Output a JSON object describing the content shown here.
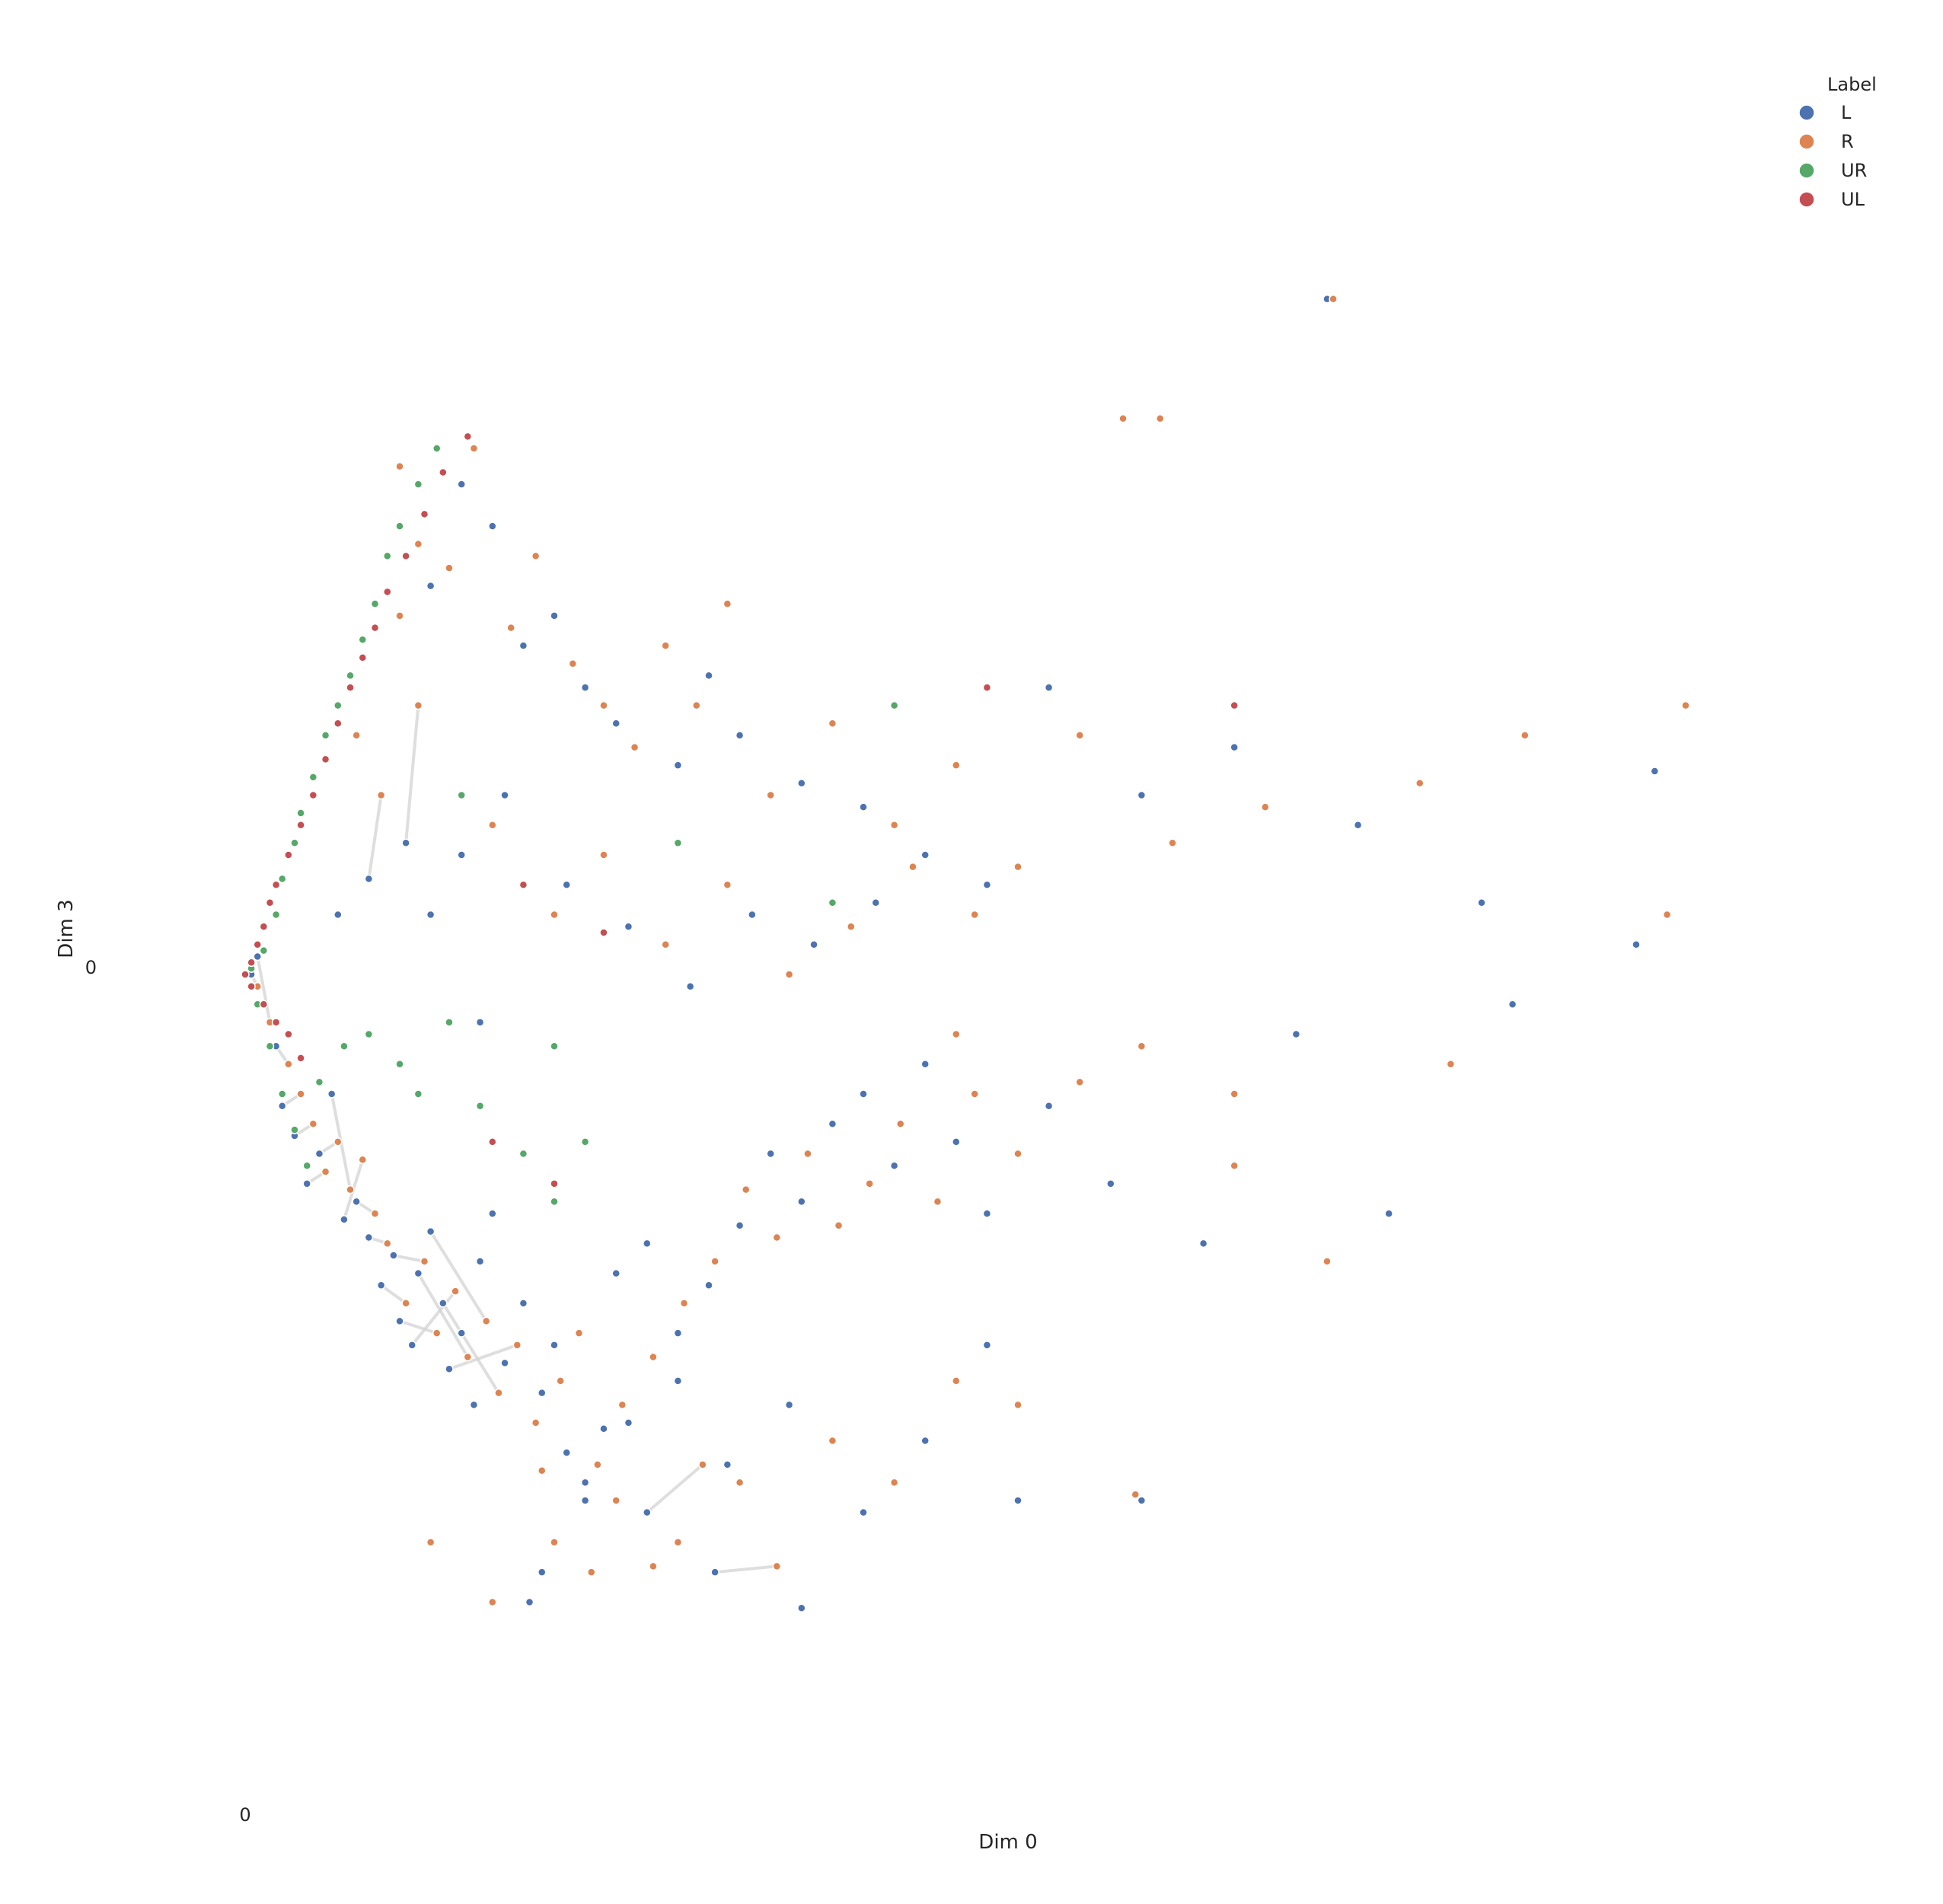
{
  "chart_data": {
    "type": "scatter",
    "title": "",
    "xlabel": "Dim 0",
    "ylabel": "Dim 3",
    "x_tick_labels": [
      "0"
    ],
    "y_tick_labels": [
      "0"
    ],
    "xlim": [
      0,
      2.5
    ],
    "ylim": [
      -1.35,
      1.35
    ],
    "grid": false,
    "legend": {
      "title": "Label",
      "position": "top-right"
    },
    "point_style": {
      "edge_color": "#ffffff",
      "connector_color": "#d3d3d3"
    },
    "series": [
      {
        "name": "L",
        "color": "#4c72b0",
        "points": [
          [
            0.01,
            0.0
          ],
          [
            0.02,
            0.03
          ],
          [
            0.05,
            -0.12
          ],
          [
            0.06,
            -0.22
          ],
          [
            0.08,
            -0.27
          ],
          [
            0.1,
            -0.35
          ],
          [
            0.12,
            -0.3
          ],
          [
            0.14,
            -0.2
          ],
          [
            0.16,
            -0.41
          ],
          [
            0.18,
            -0.38
          ],
          [
            0.2,
            -0.44
          ],
          [
            0.22,
            -0.52
          ],
          [
            0.24,
            -0.47
          ],
          [
            0.25,
            -0.58
          ],
          [
            0.27,
            -0.62
          ],
          [
            0.28,
            -0.5
          ],
          [
            0.3,
            -0.43
          ],
          [
            0.32,
            -0.55
          ],
          [
            0.33,
            -0.66
          ],
          [
            0.35,
            -0.6
          ],
          [
            0.37,
            -0.72
          ],
          [
            0.38,
            -0.48
          ],
          [
            0.4,
            -0.4
          ],
          [
            0.42,
            -0.65
          ],
          [
            0.45,
            -0.55
          ],
          [
            0.48,
            -0.7
          ],
          [
            0.5,
            -0.62
          ],
          [
            0.52,
            -0.8
          ],
          [
            0.55,
            -0.88
          ],
          [
            0.58,
            -0.76
          ],
          [
            0.6,
            -0.5
          ],
          [
            0.65,
            -0.45
          ],
          [
            0.7,
            -0.6
          ],
          [
            0.75,
            -0.52
          ],
          [
            0.8,
            -0.42
          ],
          [
            0.85,
            -0.3
          ],
          [
            0.9,
            -0.38
          ],
          [
            0.95,
            -0.25
          ],
          [
            1.0,
            -0.2
          ],
          [
            1.05,
            -0.32
          ],
          [
            1.1,
            -0.15
          ],
          [
            1.15,
            -0.28
          ],
          [
            1.2,
            -0.4
          ],
          [
            1.3,
            -0.22
          ],
          [
            1.4,
            -0.35
          ],
          [
            1.55,
            -0.45
          ],
          [
            1.7,
            -0.1
          ],
          [
            1.85,
            -0.4
          ],
          [
            2.05,
            -0.05
          ],
          [
            0.3,
            0.65
          ],
          [
            0.35,
            0.82
          ],
          [
            0.4,
            0.75
          ],
          [
            0.45,
            0.55
          ],
          [
            0.5,
            0.6
          ],
          [
            0.55,
            0.48
          ],
          [
            0.6,
            0.42
          ],
          [
            0.7,
            0.35
          ],
          [
            0.75,
            0.5
          ],
          [
            0.8,
            0.4
          ],
          [
            0.9,
            0.32
          ],
          [
            1.0,
            0.28
          ],
          [
            1.1,
            0.2
          ],
          [
            1.2,
            0.15
          ],
          [
            1.3,
            0.48
          ],
          [
            1.45,
            0.3
          ],
          [
            1.6,
            0.38
          ],
          [
            1.8,
            0.25
          ],
          [
            2.0,
            0.12
          ],
          [
            2.25,
            0.05
          ],
          [
            2.28,
            0.34
          ],
          [
            1.75,
            1.13
          ],
          [
            0.42,
            0.3
          ],
          [
            0.52,
            0.15
          ],
          [
            0.62,
            0.08
          ],
          [
            0.72,
            -0.02
          ],
          [
            0.82,
            0.1
          ],
          [
            0.92,
            0.05
          ],
          [
            1.02,
            0.12
          ],
          [
            0.3,
            0.1
          ],
          [
            0.35,
            0.2
          ],
          [
            0.38,
            -0.08
          ],
          [
            0.48,
            -1.0
          ],
          [
            0.55,
            -0.85
          ],
          [
            0.62,
            -0.75
          ],
          [
            0.7,
            -0.68
          ],
          [
            0.78,
            -0.82
          ],
          [
            0.88,
            -0.72
          ],
          [
            1.0,
            -0.9
          ],
          [
            1.1,
            -0.78
          ],
          [
            1.2,
            -0.62
          ],
          [
            0.46,
            -1.05
          ],
          [
            0.65,
            -0.9
          ],
          [
            0.76,
            -1.0
          ],
          [
            1.25,
            -0.88
          ],
          [
            0.9,
            -1.06
          ],
          [
            1.45,
            -0.88
          ],
          [
            0.15,
            0.1
          ],
          [
            0.2,
            0.16
          ],
          [
            0.26,
            0.22
          ]
        ]
      },
      {
        "name": "R",
        "color": "#dd8452",
        "points": [
          [
            0.02,
            -0.02
          ],
          [
            0.04,
            -0.08
          ],
          [
            0.07,
            -0.15
          ],
          [
            0.09,
            -0.2
          ],
          [
            0.11,
            -0.25
          ],
          [
            0.13,
            -0.33
          ],
          [
            0.15,
            -0.28
          ],
          [
            0.17,
            -0.36
          ],
          [
            0.19,
            -0.31
          ],
          [
            0.21,
            -0.4
          ],
          [
            0.23,
            -0.45
          ],
          [
            0.26,
            -0.55
          ],
          [
            0.29,
            -0.48
          ],
          [
            0.31,
            -0.6
          ],
          [
            0.34,
            -0.53
          ],
          [
            0.36,
            -0.64
          ],
          [
            0.39,
            -0.58
          ],
          [
            0.41,
            -0.7
          ],
          [
            0.44,
            -0.62
          ],
          [
            0.47,
            -0.75
          ],
          [
            0.51,
            -0.68
          ],
          [
            0.54,
            -0.6
          ],
          [
            0.57,
            -0.82
          ],
          [
            0.61,
            -0.72
          ],
          [
            0.66,
            -0.64
          ],
          [
            0.71,
            -0.55
          ],
          [
            0.76,
            -0.48
          ],
          [
            0.81,
            -0.36
          ],
          [
            0.86,
            -0.44
          ],
          [
            0.91,
            -0.3
          ],
          [
            0.96,
            -0.42
          ],
          [
            1.01,
            -0.35
          ],
          [
            1.06,
            -0.25
          ],
          [
            1.12,
            -0.38
          ],
          [
            1.18,
            -0.2
          ],
          [
            1.25,
            -0.3
          ],
          [
            1.35,
            -0.18
          ],
          [
            1.45,
            -0.12
          ],
          [
            1.6,
            -0.32
          ],
          [
            1.75,
            -0.48
          ],
          [
            1.95,
            -0.15
          ],
          [
            0.25,
            0.6
          ],
          [
            0.28,
            0.72
          ],
          [
            0.33,
            0.68
          ],
          [
            0.37,
            0.88
          ],
          [
            0.43,
            0.58
          ],
          [
            0.47,
            0.7
          ],
          [
            0.53,
            0.52
          ],
          [
            0.58,
            0.45
          ],
          [
            0.63,
            0.38
          ],
          [
            0.68,
            0.55
          ],
          [
            0.73,
            0.45
          ],
          [
            0.78,
            0.62
          ],
          [
            0.85,
            0.3
          ],
          [
            0.95,
            0.42
          ],
          [
            1.05,
            0.25
          ],
          [
            1.15,
            0.35
          ],
          [
            1.25,
            0.18
          ],
          [
            1.35,
            0.4
          ],
          [
            1.5,
            0.22
          ],
          [
            1.65,
            0.28
          ],
          [
            1.9,
            0.32
          ],
          [
            2.07,
            0.4
          ],
          [
            2.3,
            0.1
          ],
          [
            2.33,
            0.45
          ],
          [
            1.76,
            1.13
          ],
          [
            1.42,
            0.93
          ],
          [
            1.48,
            0.93
          ],
          [
            0.25,
            0.85
          ],
          [
            0.4,
            0.25
          ],
          [
            0.5,
            0.1
          ],
          [
            0.58,
            0.2
          ],
          [
            0.68,
            0.05
          ],
          [
            0.78,
            0.15
          ],
          [
            0.88,
            0.0
          ],
          [
            0.98,
            0.08
          ],
          [
            1.08,
            0.18
          ],
          [
            1.18,
            0.1
          ],
          [
            0.3,
            -0.95
          ],
          [
            0.4,
            -1.05
          ],
          [
            0.5,
            -0.95
          ],
          [
            0.6,
            -0.88
          ],
          [
            0.7,
            -0.95
          ],
          [
            0.8,
            -0.85
          ],
          [
            0.95,
            -0.78
          ],
          [
            1.05,
            -0.85
          ],
          [
            1.15,
            -0.68
          ],
          [
            1.25,
            -0.72
          ],
          [
            0.48,
            -0.83
          ],
          [
            0.56,
            -1.0
          ],
          [
            0.66,
            -0.99
          ],
          [
            0.74,
            -0.82
          ],
          [
            0.86,
            -0.99
          ],
          [
            1.44,
            -0.87
          ],
          [
            1.6,
            -0.2
          ],
          [
            1.15,
            -0.1
          ],
          [
            0.18,
            0.4
          ],
          [
            0.22,
            0.3
          ],
          [
            0.28,
            0.45
          ]
        ]
      },
      {
        "name": "UR",
        "color": "#55a868",
        "points": [
          [
            0.01,
            0.01
          ],
          [
            0.03,
            0.04
          ],
          [
            0.05,
            0.1
          ],
          [
            0.06,
            0.16
          ],
          [
            0.08,
            0.22
          ],
          [
            0.09,
            0.27
          ],
          [
            0.11,
            0.33
          ],
          [
            0.13,
            0.4
          ],
          [
            0.15,
            0.45
          ],
          [
            0.17,
            0.5
          ],
          [
            0.19,
            0.56
          ],
          [
            0.21,
            0.62
          ],
          [
            0.23,
            0.7
          ],
          [
            0.25,
            0.75
          ],
          [
            0.28,
            0.82
          ],
          [
            0.31,
            0.88
          ],
          [
            0.02,
            -0.05
          ],
          [
            0.04,
            -0.12
          ],
          [
            0.06,
            -0.2
          ],
          [
            0.08,
            -0.26
          ],
          [
            0.1,
            -0.32
          ],
          [
            0.12,
            -0.18
          ],
          [
            0.16,
            -0.12
          ],
          [
            0.2,
            -0.1
          ],
          [
            0.25,
            -0.15
          ],
          [
            0.28,
            -0.2
          ],
          [
            0.33,
            -0.08
          ],
          [
            0.38,
            -0.22
          ],
          [
            0.45,
            -0.3
          ],
          [
            0.5,
            -0.38
          ],
          [
            0.55,
            -0.28
          ],
          [
            0.35,
            0.3
          ],
          [
            0.5,
            -0.12
          ],
          [
            0.7,
            0.22
          ],
          [
            0.95,
            0.12
          ],
          [
            1.05,
            0.45
          ]
        ]
      },
      {
        "name": "UL",
        "color": "#c44e52",
        "points": [
          [
            0.0,
            0.0
          ],
          [
            0.01,
            0.02
          ],
          [
            0.02,
            0.05
          ],
          [
            0.03,
            0.08
          ],
          [
            0.04,
            0.12
          ],
          [
            0.05,
            0.15
          ],
          [
            0.07,
            0.2
          ],
          [
            0.09,
            0.25
          ],
          [
            0.11,
            0.3
          ],
          [
            0.13,
            0.36
          ],
          [
            0.15,
            0.42
          ],
          [
            0.17,
            0.48
          ],
          [
            0.19,
            0.53
          ],
          [
            0.21,
            0.58
          ],
          [
            0.23,
            0.64
          ],
          [
            0.26,
            0.7
          ],
          [
            0.29,
            0.77
          ],
          [
            0.32,
            0.84
          ],
          [
            0.36,
            0.9
          ],
          [
            0.01,
            -0.02
          ],
          [
            0.03,
            -0.05
          ],
          [
            0.05,
            -0.08
          ],
          [
            0.07,
            -0.1
          ],
          [
            0.09,
            -0.14
          ],
          [
            0.4,
            -0.28
          ],
          [
            0.5,
            -0.35
          ],
          [
            0.58,
            0.07
          ],
          [
            1.2,
            0.48
          ],
          [
            1.6,
            0.45
          ],
          [
            0.45,
            0.15
          ]
        ]
      }
    ]
  }
}
